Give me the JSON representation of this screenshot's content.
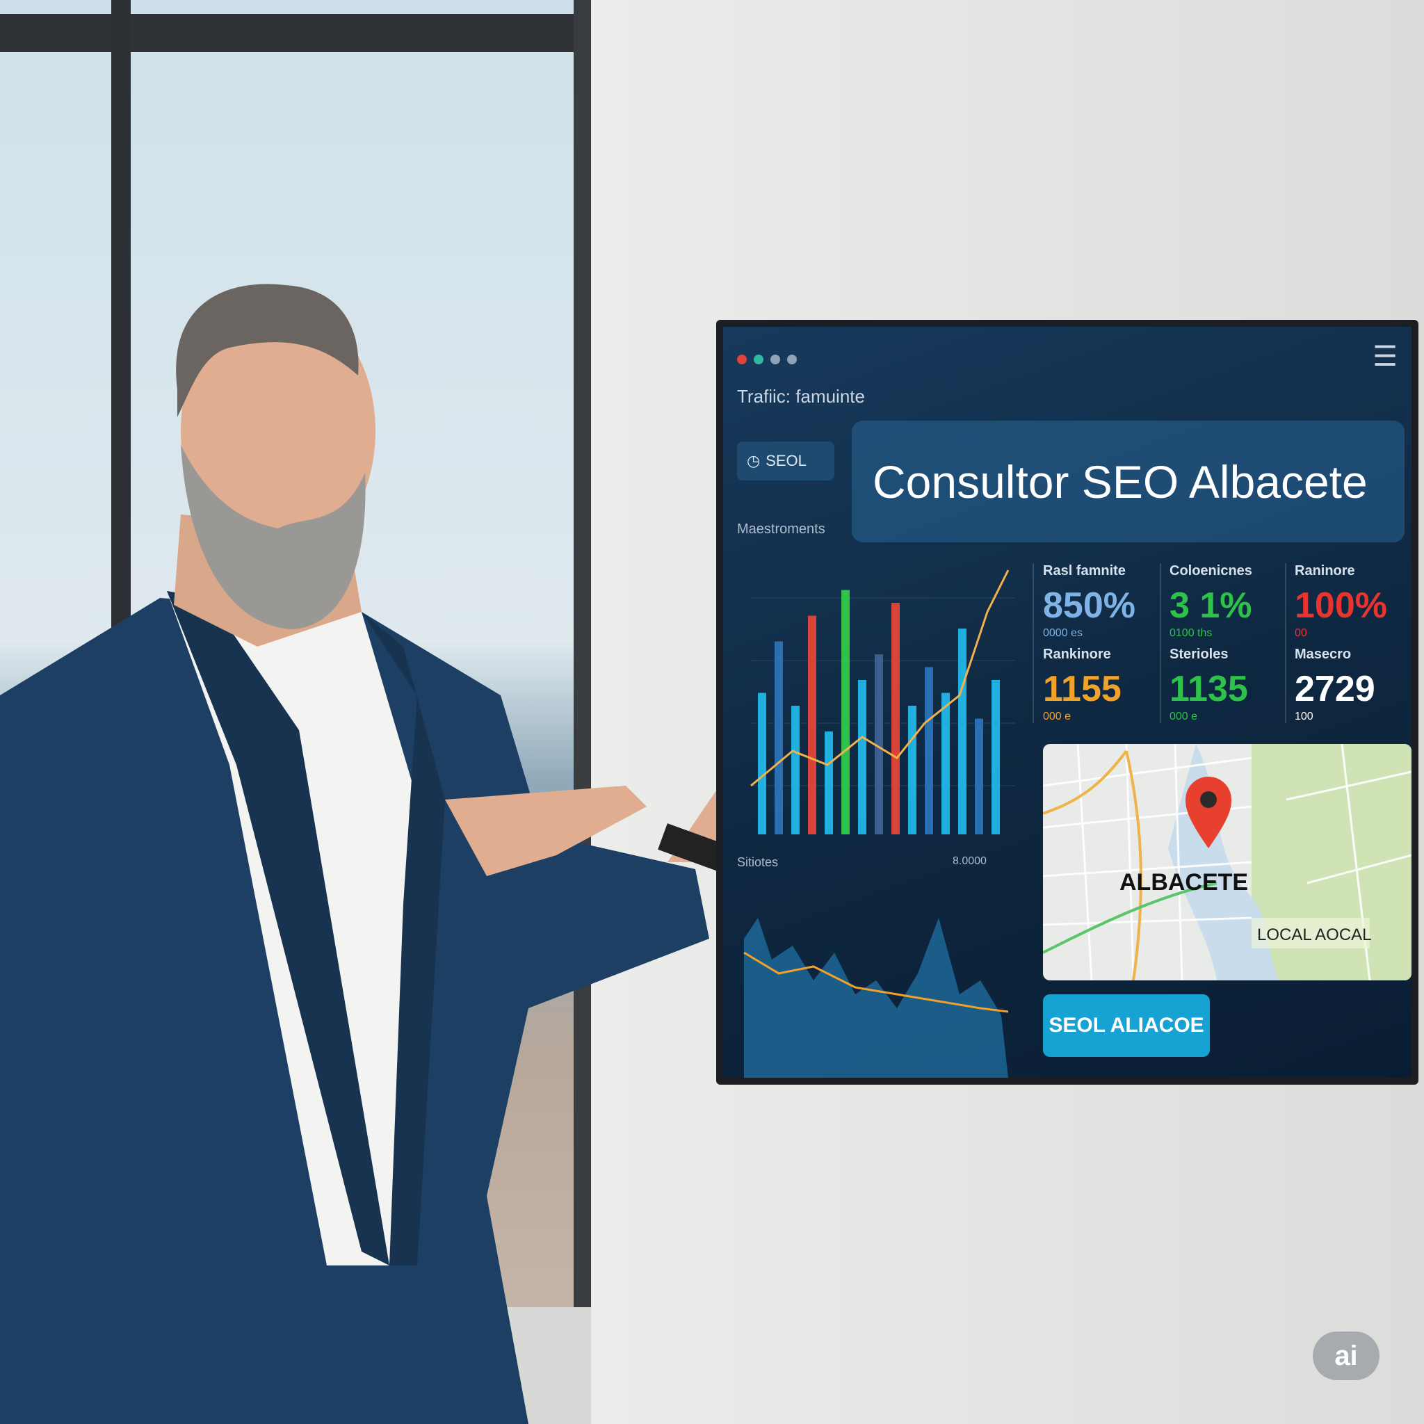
{
  "dashboard": {
    "window_dots": [
      "#e0443a",
      "#2fb7a0",
      "#8fa3b8",
      "#8fa3b8"
    ],
    "nav_text": "Trafiic: famuinte",
    "side_button": "SEOL",
    "sidebar_label": "Maestroments",
    "title": "Consultor SEO Albacete",
    "chart_footer_label": "Sitiotes",
    "chart2_label": "8.0000",
    "metrics": [
      {
        "label": "Rasl famnite",
        "value": "850%",
        "sub": "0000 es",
        "color": "#7fb2e5"
      },
      {
        "label": "Coloenicnes",
        "value": "3 1%",
        "sub": "0100 ths",
        "color": "#2ec24a"
      },
      {
        "label": "Raninore",
        "value": "100%",
        "sub": "00",
        "color": "#e8332f"
      },
      {
        "label": "Rankinore",
        "value": "1155",
        "sub": "000 e",
        "color": "#f0a22a"
      },
      {
        "label": "Sterioles",
        "value": "1135",
        "sub": "000 e",
        "color": "#2ec24a"
      },
      {
        "label": "Masecro",
        "value": "2729",
        "sub": "100",
        "color": "#ffffff"
      }
    ],
    "map": {
      "city_label": "ALBACETE",
      "area_label": "LOCAL AOCAL",
      "pin_color": "#e8402f"
    },
    "cta_button": "SEOL ALIACOE"
  },
  "badge": "ai",
  "colors": {
    "screen_bg": "#0e2740",
    "accent": "#16a3d3",
    "suit": "#1d3f63"
  }
}
